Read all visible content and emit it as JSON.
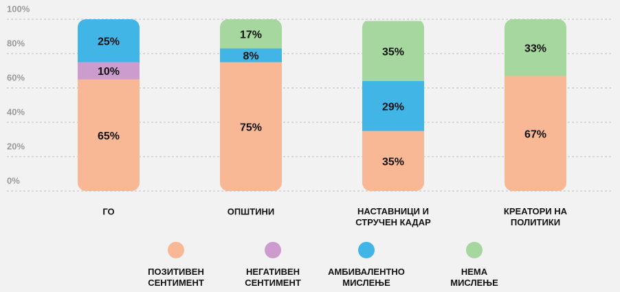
{
  "chart_data": {
    "type": "stacked_bar",
    "categories": [
      "ГО",
      "ОПШТИНИ",
      "НАСТАВНИЦИ И\nСТРУЧЕН КАДАР",
      "КРЕАТОРИ НА\nПОЛИТИКИ"
    ],
    "series": [
      {
        "name": "ПОЗИТИВЕН\nСЕНТИМЕНТ",
        "color": "#f8b896",
        "values": [
          65,
          75,
          35,
          67
        ],
        "value_labels": [
          "65%",
          "75%",
          "35%",
          "67%"
        ]
      },
      {
        "name": "НЕГАТИВЕН\nСЕНТИМЕНТ",
        "color": "#cc9ccf",
        "values": [
          10,
          0,
          0,
          0
        ],
        "value_labels": [
          "10%",
          null,
          null,
          null
        ]
      },
      {
        "name": "АМБИВАЛЕНТНО\nМИСЛЕЊЕ",
        "color": "#42b5e7",
        "values": [
          25,
          8,
          29,
          0
        ],
        "value_labels": [
          "25%",
          "8%",
          "29%",
          null
        ]
      },
      {
        "name": "НЕМА\nМИСЛЕЊЕ",
        "color": "#a6d79e",
        "values": [
          0,
          17,
          35,
          33
        ],
        "value_labels": [
          null,
          "17%",
          "35%",
          "33%"
        ]
      }
    ],
    "ylim": [
      0,
      100
    ],
    "yticks": [
      {
        "value": 0,
        "label": "0%"
      },
      {
        "value": 20,
        "label": "20%"
      },
      {
        "value": 40,
        "label": "40%"
      },
      {
        "value": 60,
        "label": "60%"
      },
      {
        "value": 80,
        "label": "80%"
      },
      {
        "value": 100,
        "label": "100%"
      }
    ],
    "grid": true
  }
}
